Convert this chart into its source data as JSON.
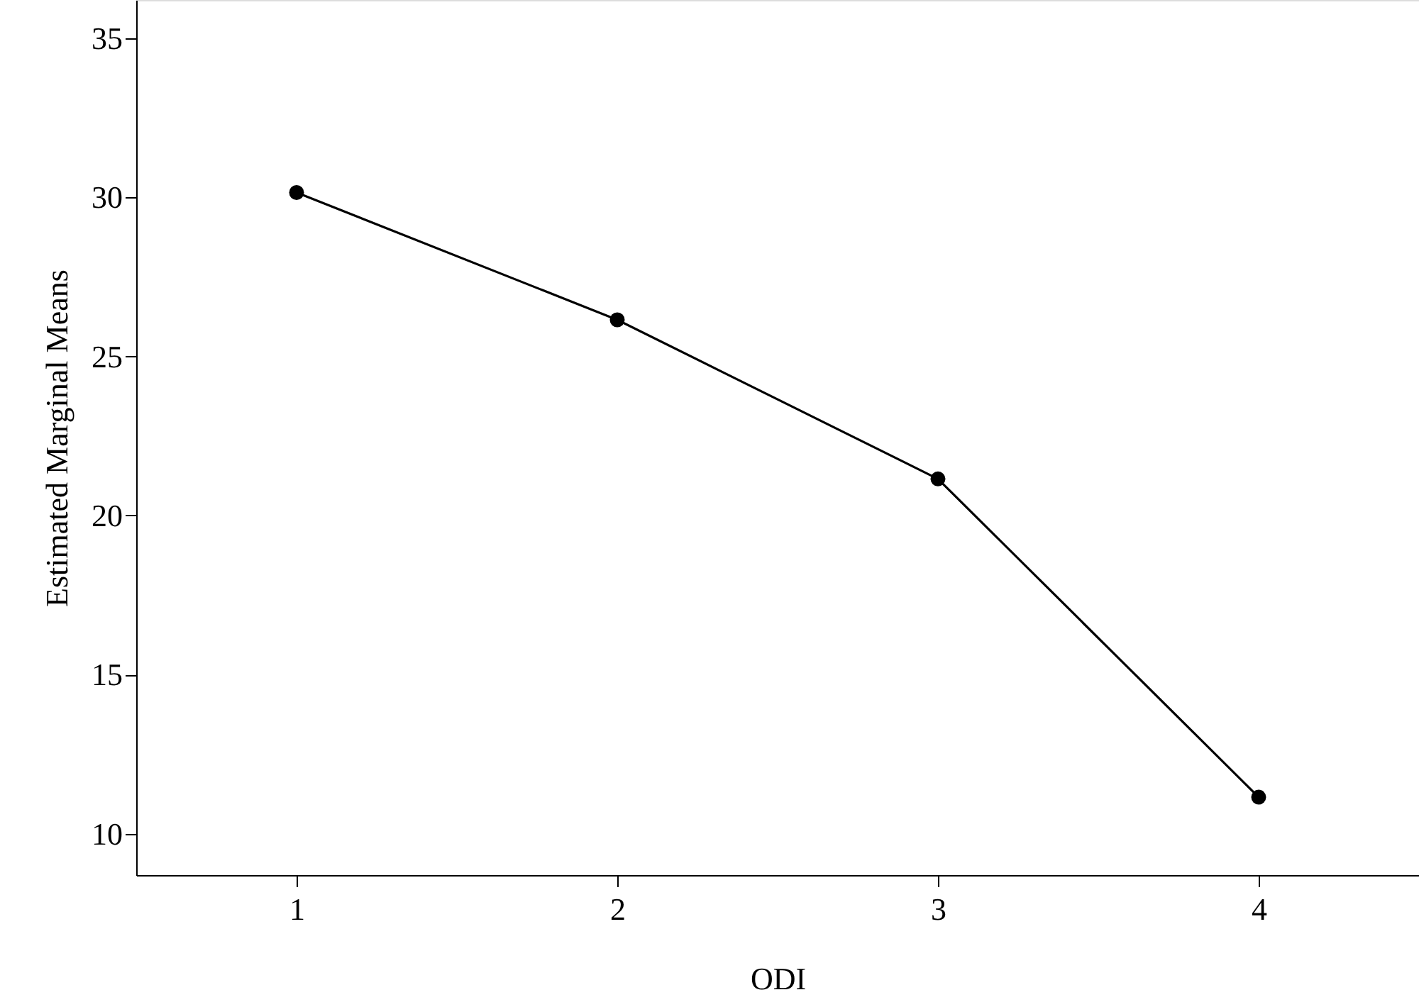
{
  "chart_data": {
    "type": "line",
    "xlabel": "ODI",
    "ylabel": "Estimated Marginal Means",
    "categories": [
      "1",
      "2",
      "3",
      "4"
    ],
    "series": [
      {
        "color": "#000000",
        "values": [
          30.15,
          26.15,
          21.15,
          11.15
        ]
      }
    ],
    "ylim": [
      8.7,
      36.2
    ],
    "yticks": [
      10,
      15,
      20,
      25,
      30,
      35
    ],
    "grid": false,
    "marker": "circle",
    "line_style": "solid"
  }
}
